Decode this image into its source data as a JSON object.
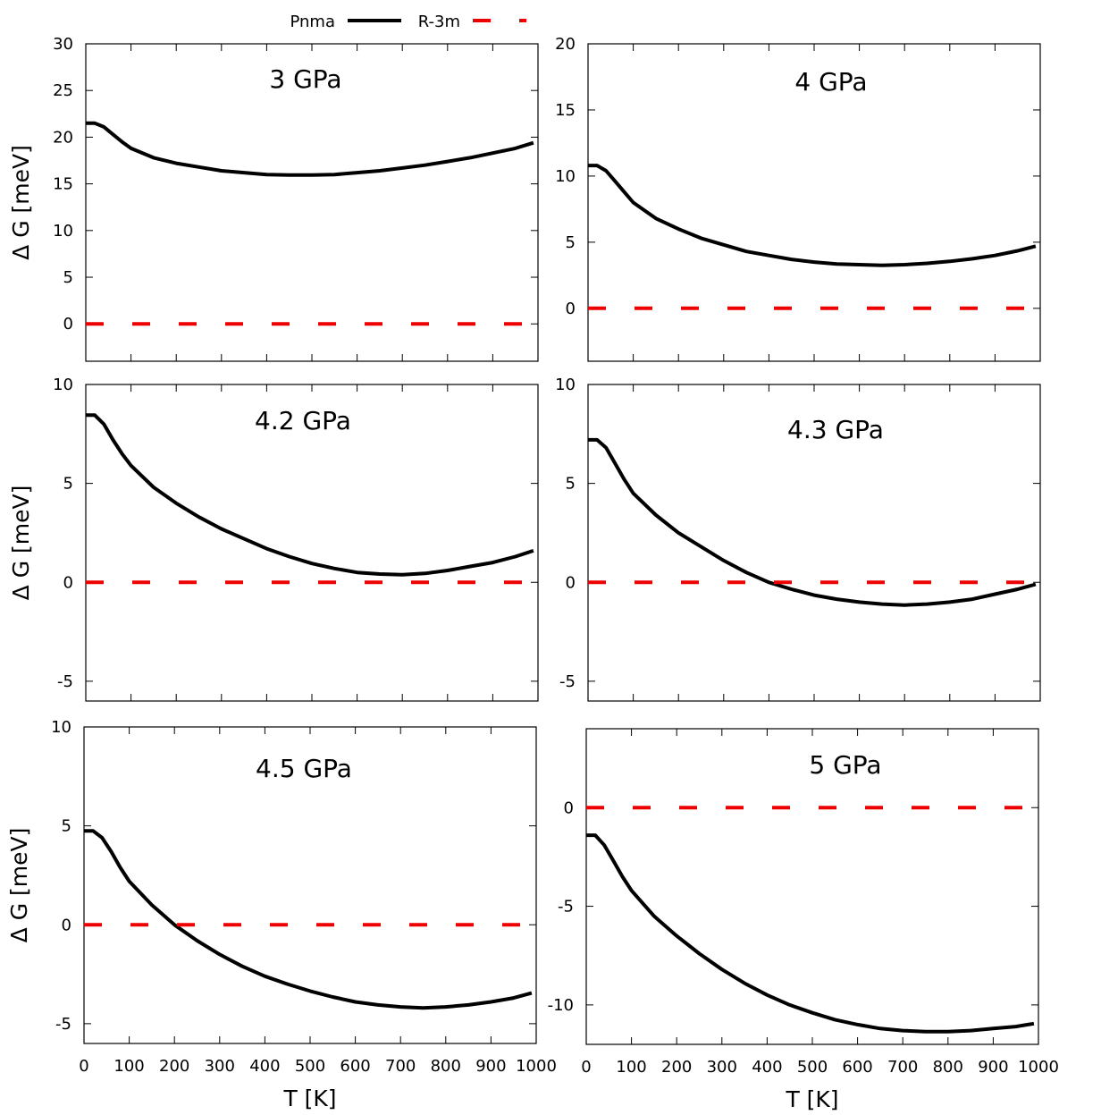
{
  "legend": {
    "entries": [
      {
        "label": "Pnma",
        "color": "#000000",
        "style": "solid"
      },
      {
        "label": "R-3m",
        "color": "#ee0000",
        "style": "dashed"
      }
    ]
  },
  "chart_data": [
    {
      "type": "line",
      "title": "3 GPa",
      "xlabel": "",
      "ylabel": "Δ G [meV]",
      "xlim": [
        0,
        1000
      ],
      "ylim": [
        -4,
        30
      ],
      "xticks": [
        0,
        100,
        200,
        300,
        400,
        500,
        600,
        700,
        800,
        900,
        1000
      ],
      "xticks_labeled": false,
      "yticks": [
        0,
        5,
        10,
        15,
        20,
        25,
        30
      ],
      "series": [
        {
          "name": "Pnma",
          "x": [
            0,
            20,
            40,
            60,
            80,
            100,
            150,
            200,
            250,
            300,
            350,
            400,
            450,
            500,
            550,
            600,
            650,
            700,
            750,
            800,
            850,
            900,
            950,
            990
          ],
          "y": [
            21.5,
            21.5,
            21.1,
            20.3,
            19.5,
            18.8,
            17.8,
            17.2,
            16.8,
            16.4,
            16.2,
            16.0,
            15.95,
            15.95,
            16.0,
            16.2,
            16.4,
            16.7,
            17.0,
            17.4,
            17.8,
            18.3,
            18.8,
            19.4
          ]
        },
        {
          "name": "R-3m",
          "x": [
            0,
            990
          ],
          "y": [
            0,
            0
          ]
        }
      ]
    },
    {
      "type": "line",
      "title": "4 GPa",
      "xlabel": "",
      "ylabel": "",
      "xlim": [
        0,
        1000
      ],
      "ylim": [
        -4,
        20
      ],
      "xticks": [
        0,
        100,
        200,
        300,
        400,
        500,
        600,
        700,
        800,
        900,
        1000
      ],
      "xticks_labeled": false,
      "yticks": [
        0,
        5,
        10,
        15,
        20
      ],
      "series": [
        {
          "name": "Pnma",
          "x": [
            0,
            20,
            40,
            60,
            80,
            100,
            150,
            200,
            250,
            300,
            350,
            400,
            450,
            500,
            550,
            600,
            650,
            700,
            750,
            800,
            850,
            900,
            950,
            990
          ],
          "y": [
            10.8,
            10.8,
            10.4,
            9.6,
            8.8,
            8.0,
            6.8,
            6.0,
            5.3,
            4.8,
            4.3,
            4.0,
            3.7,
            3.5,
            3.35,
            3.3,
            3.25,
            3.3,
            3.4,
            3.55,
            3.75,
            4.0,
            4.35,
            4.7
          ]
        },
        {
          "name": "R-3m",
          "x": [
            0,
            990
          ],
          "y": [
            0,
            0
          ]
        }
      ]
    },
    {
      "type": "line",
      "title": "4.2 GPa",
      "xlabel": "",
      "ylabel": "Δ G [meV]",
      "xlim": [
        0,
        1000
      ],
      "ylim": [
        -6,
        10
      ],
      "xticks": [
        0,
        100,
        200,
        300,
        400,
        500,
        600,
        700,
        800,
        900,
        1000
      ],
      "xticks_labeled": false,
      "yticks": [
        -5,
        0,
        5,
        10
      ],
      "series": [
        {
          "name": "Pnma",
          "x": [
            0,
            20,
            40,
            60,
            80,
            100,
            150,
            200,
            250,
            300,
            350,
            400,
            450,
            500,
            550,
            600,
            650,
            700,
            750,
            800,
            850,
            900,
            950,
            990
          ],
          "y": [
            8.45,
            8.45,
            8.0,
            7.2,
            6.5,
            5.9,
            4.8,
            4.0,
            3.3,
            2.7,
            2.2,
            1.7,
            1.3,
            0.95,
            0.7,
            0.5,
            0.42,
            0.38,
            0.45,
            0.6,
            0.8,
            1.0,
            1.3,
            1.6
          ]
        },
        {
          "name": "R-3m",
          "x": [
            0,
            990
          ],
          "y": [
            0,
            0
          ]
        }
      ]
    },
    {
      "type": "line",
      "title": "4.3 GPa",
      "xlabel": "",
      "ylabel": "",
      "xlim": [
        0,
        1000
      ],
      "ylim": [
        -6,
        10
      ],
      "xticks": [
        0,
        100,
        200,
        300,
        400,
        500,
        600,
        700,
        800,
        900,
        1000
      ],
      "xticks_labeled": false,
      "yticks": [
        -5,
        0,
        5,
        10
      ],
      "series": [
        {
          "name": "Pnma",
          "x": [
            0,
            20,
            40,
            60,
            80,
            100,
            150,
            200,
            250,
            300,
            350,
            400,
            450,
            500,
            550,
            600,
            650,
            700,
            750,
            800,
            850,
            900,
            950,
            990
          ],
          "y": [
            7.2,
            7.2,
            6.8,
            6.0,
            5.2,
            4.5,
            3.4,
            2.5,
            1.8,
            1.1,
            0.5,
            0.0,
            -0.35,
            -0.65,
            -0.85,
            -1.0,
            -1.1,
            -1.15,
            -1.1,
            -1.0,
            -0.85,
            -0.6,
            -0.35,
            -0.1
          ]
        },
        {
          "name": "R-3m",
          "x": [
            0,
            990
          ],
          "y": [
            0,
            0
          ]
        }
      ]
    },
    {
      "type": "line",
      "title": "4.5 GPa",
      "xlabel": "T [K]",
      "ylabel": "Δ G [meV]",
      "xlim": [
        0,
        1000
      ],
      "ylim": [
        -6,
        10
      ],
      "xticks": [
        0,
        100,
        200,
        300,
        400,
        500,
        600,
        700,
        800,
        900,
        1000
      ],
      "xticks_labeled": true,
      "yticks": [
        -5,
        0,
        5,
        10
      ],
      "series": [
        {
          "name": "Pnma",
          "x": [
            0,
            20,
            40,
            60,
            80,
            100,
            150,
            200,
            250,
            300,
            350,
            400,
            450,
            500,
            550,
            600,
            650,
            700,
            750,
            800,
            850,
            900,
            950,
            990
          ],
          "y": [
            4.75,
            4.75,
            4.4,
            3.7,
            2.9,
            2.2,
            1.0,
            0.0,
            -0.8,
            -1.5,
            -2.1,
            -2.6,
            -3.0,
            -3.35,
            -3.65,
            -3.9,
            -4.05,
            -4.15,
            -4.2,
            -4.15,
            -4.05,
            -3.9,
            -3.7,
            -3.45
          ]
        },
        {
          "name": "R-3m",
          "x": [
            0,
            990
          ],
          "y": [
            0,
            0
          ]
        }
      ]
    },
    {
      "type": "line",
      "title": "5 GPa",
      "xlabel": "T [K]",
      "ylabel": "",
      "xlim": [
        0,
        1000
      ],
      "ylim": [
        -12,
        4
      ],
      "xticks": [
        0,
        100,
        200,
        300,
        400,
        500,
        600,
        700,
        800,
        900,
        1000
      ],
      "xticks_labeled": true,
      "yticks": [
        -10,
        -5,
        0
      ],
      "series": [
        {
          "name": "Pnma",
          "x": [
            0,
            20,
            40,
            60,
            80,
            100,
            150,
            200,
            250,
            300,
            350,
            400,
            450,
            500,
            550,
            600,
            650,
            700,
            750,
            800,
            850,
            900,
            950,
            990
          ],
          "y": [
            -1.4,
            -1.4,
            -1.9,
            -2.7,
            -3.5,
            -4.2,
            -5.5,
            -6.5,
            -7.4,
            -8.2,
            -8.9,
            -9.5,
            -10.0,
            -10.4,
            -10.75,
            -11.0,
            -11.2,
            -11.3,
            -11.35,
            -11.35,
            -11.3,
            -11.2,
            -11.1,
            -10.95
          ]
        },
        {
          "name": "R-3m",
          "x": [
            0,
            990
          ],
          "y": [
            0,
            0
          ]
        }
      ]
    }
  ]
}
